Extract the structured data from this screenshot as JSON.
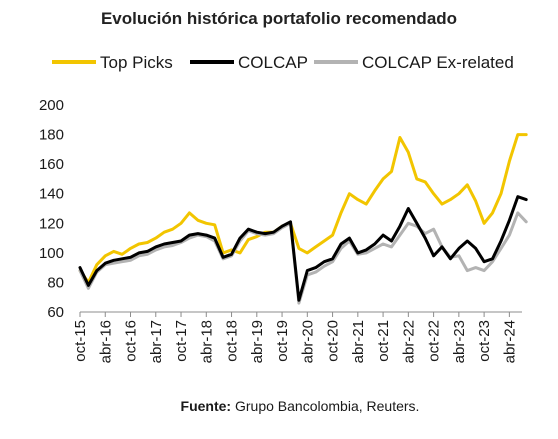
{
  "chart_data": {
    "type": "line",
    "title": "Evolución histórica portafolio recomendado",
    "source_label": "Fuente:",
    "source_text": " Grupo Bancolombia, Reuters.",
    "xlabel": "",
    "ylabel": "",
    "ylim": [
      60,
      200
    ],
    "yticks": [
      60,
      80,
      100,
      120,
      140,
      160,
      180,
      200
    ],
    "xticks": [
      "oct-15",
      "abr-16",
      "oct-16",
      "abr-17",
      "oct-17",
      "abr-18",
      "oct-18",
      "abr-19",
      "oct-19",
      "abr-20",
      "oct-20",
      "abr-21",
      "oct-21",
      "abr-22",
      "oct-22",
      "abr-23",
      "oct-23",
      "abr-24"
    ],
    "grid": false,
    "legend": "top",
    "x": [
      "oct-15",
      "dic-15",
      "feb-16",
      "abr-16",
      "jun-16",
      "ago-16",
      "oct-16",
      "dic-16",
      "feb-17",
      "abr-17",
      "jun-17",
      "ago-17",
      "oct-17",
      "dic-17",
      "feb-18",
      "abr-18",
      "jun-18",
      "ago-18",
      "oct-18",
      "dic-18",
      "feb-19",
      "abr-19",
      "jun-19",
      "ago-19",
      "oct-19",
      "dic-19",
      "feb-20",
      "abr-20",
      "jun-20",
      "ago-20",
      "oct-20",
      "dic-20",
      "feb-21",
      "abr-21",
      "jun-21",
      "ago-21",
      "oct-21",
      "dic-21",
      "feb-22",
      "abr-22",
      "jun-22",
      "ago-22",
      "oct-22",
      "dic-22",
      "feb-23",
      "abr-23",
      "jun-23",
      "ago-23",
      "oct-23",
      "dic-23",
      "feb-24",
      "abr-24",
      "jun-24",
      "ago-24"
    ],
    "series": [
      {
        "name": "Top Picks",
        "color": "#f2c500",
        "values": [
          88,
          80,
          92,
          98,
          101,
          99,
          103,
          106,
          107,
          110,
          114,
          116,
          120,
          127,
          122,
          120,
          119,
          100,
          102,
          100,
          109,
          111,
          114,
          114,
          118,
          120,
          103,
          100,
          104,
          108,
          112,
          127,
          140,
          136,
          133,
          142,
          150,
          155,
          178,
          168,
          150,
          148,
          140,
          133,
          136,
          140,
          146,
          135,
          120,
          127,
          140,
          162,
          180,
          180
        ]
      },
      {
        "name": "COLCAP",
        "color": "#000000",
        "values": [
          90,
          78,
          88,
          93,
          95,
          96,
          97,
          100,
          101,
          104,
          106,
          107,
          108,
          112,
          113,
          112,
          110,
          97,
          99,
          110,
          116,
          114,
          113,
          114,
          118,
          121,
          68,
          88,
          90,
          94,
          96,
          106,
          110,
          100,
          102,
          106,
          112,
          108,
          118,
          130,
          120,
          110,
          98,
          104,
          96,
          103,
          108,
          103,
          94,
          96,
          108,
          122,
          138,
          136
        ]
      },
      {
        "name": "COLCAP Ex-related",
        "color": "#b3b3b3",
        "values": [
          88,
          76,
          87,
          92,
          93,
          94,
          95,
          98,
          99,
          102,
          104,
          105,
          107,
          110,
          112,
          111,
          108,
          96,
          98,
          108,
          115,
          113,
          112,
          113,
          117,
          120,
          66,
          85,
          87,
          91,
          94,
          103,
          108,
          99,
          100,
          103,
          106,
          104,
          112,
          120,
          118,
          113,
          116,
          104,
          97,
          98,
          88,
          90,
          88,
          94,
          103,
          112,
          127,
          121
        ]
      }
    ]
  }
}
